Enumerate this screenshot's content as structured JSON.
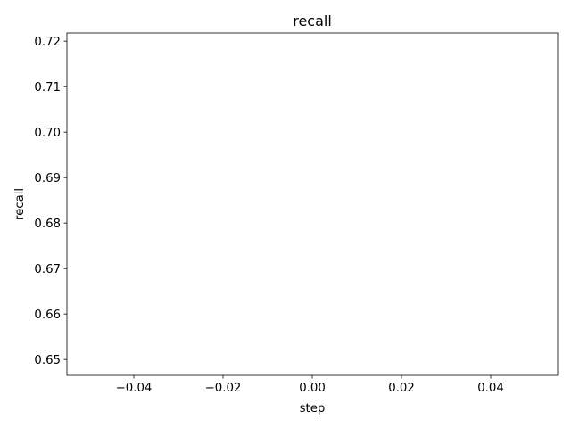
{
  "chart_data": {
    "type": "line",
    "title": "recall",
    "xlabel": "step",
    "ylabel": "recall",
    "xlim": [
      -0.055,
      0.055
    ],
    "ylim": [
      0.6465,
      0.7218
    ],
    "xticks": [
      -0.04,
      -0.02,
      0.0,
      0.02,
      0.04
    ],
    "xtick_labels": [
      "−0.04",
      "−0.02",
      "0.00",
      "0.02",
      "0.04"
    ],
    "yticks": [
      0.65,
      0.66,
      0.67,
      0.68,
      0.69,
      0.7,
      0.71,
      0.72
    ],
    "ytick_labels": [
      "0.65",
      "0.66",
      "0.67",
      "0.68",
      "0.69",
      "0.70",
      "0.71",
      "0.72"
    ],
    "grid": false,
    "series": [
      {
        "x": [],
        "y": [],
        "color": "#1f77b4"
      }
    ]
  }
}
